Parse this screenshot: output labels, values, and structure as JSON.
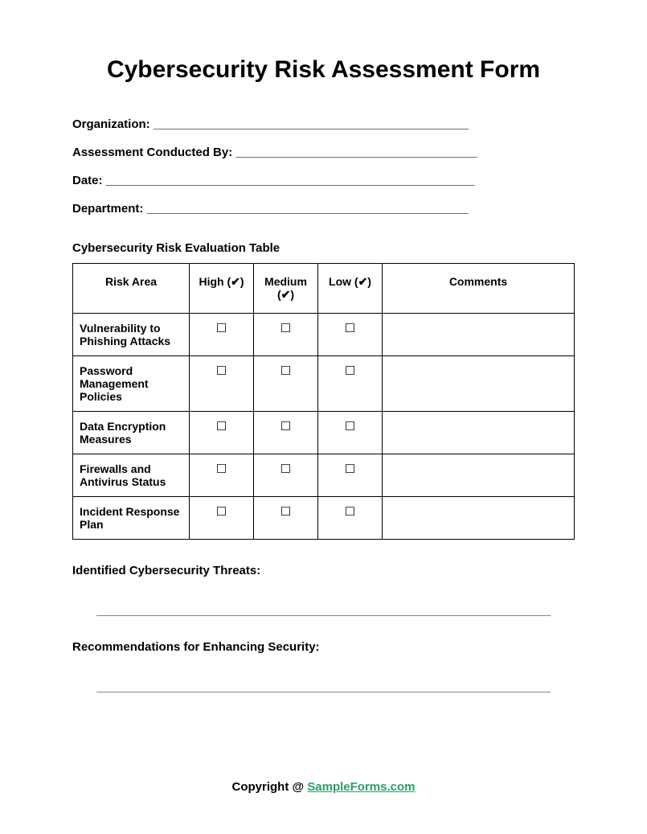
{
  "title": "Cybersecurity Risk Assessment Form",
  "fields": {
    "organization": {
      "label": "Organization:",
      "line": " _______________________________________________"
    },
    "conducted_by": {
      "label": "Assessment Conducted By:",
      "line": " ____________________________________"
    },
    "date": {
      "label": "Date:",
      "line": " _______________________________________________________"
    },
    "department": {
      "label": "Department:",
      "line": " ________________________________________________"
    }
  },
  "table": {
    "heading": "Cybersecurity Risk Evaluation Table",
    "columns": {
      "risk_area": "Risk Area",
      "high": "High (✔)",
      "medium": "Medium (✔)",
      "low": "Low (✔)",
      "comments": "Comments"
    },
    "checkbox_glyph": "☐",
    "rows": [
      {
        "area": "Vulnerability to Phishing Attacks"
      },
      {
        "area": "Password Management Policies"
      },
      {
        "area": "Data Encryption Measures"
      },
      {
        "area": "Firewalls and Antivirus Status"
      },
      {
        "area": "Incident Response Plan"
      }
    ]
  },
  "threats_label": "Identified Cybersecurity Threats:",
  "recommendations_label": "Recommendations for Enhancing Security:",
  "footer": {
    "prefix": "Copyright @ ",
    "link_text": "SampleForms.com"
  },
  "colors": {
    "link": "#2e9b6b",
    "border": "#000000",
    "rule": "#888888"
  }
}
